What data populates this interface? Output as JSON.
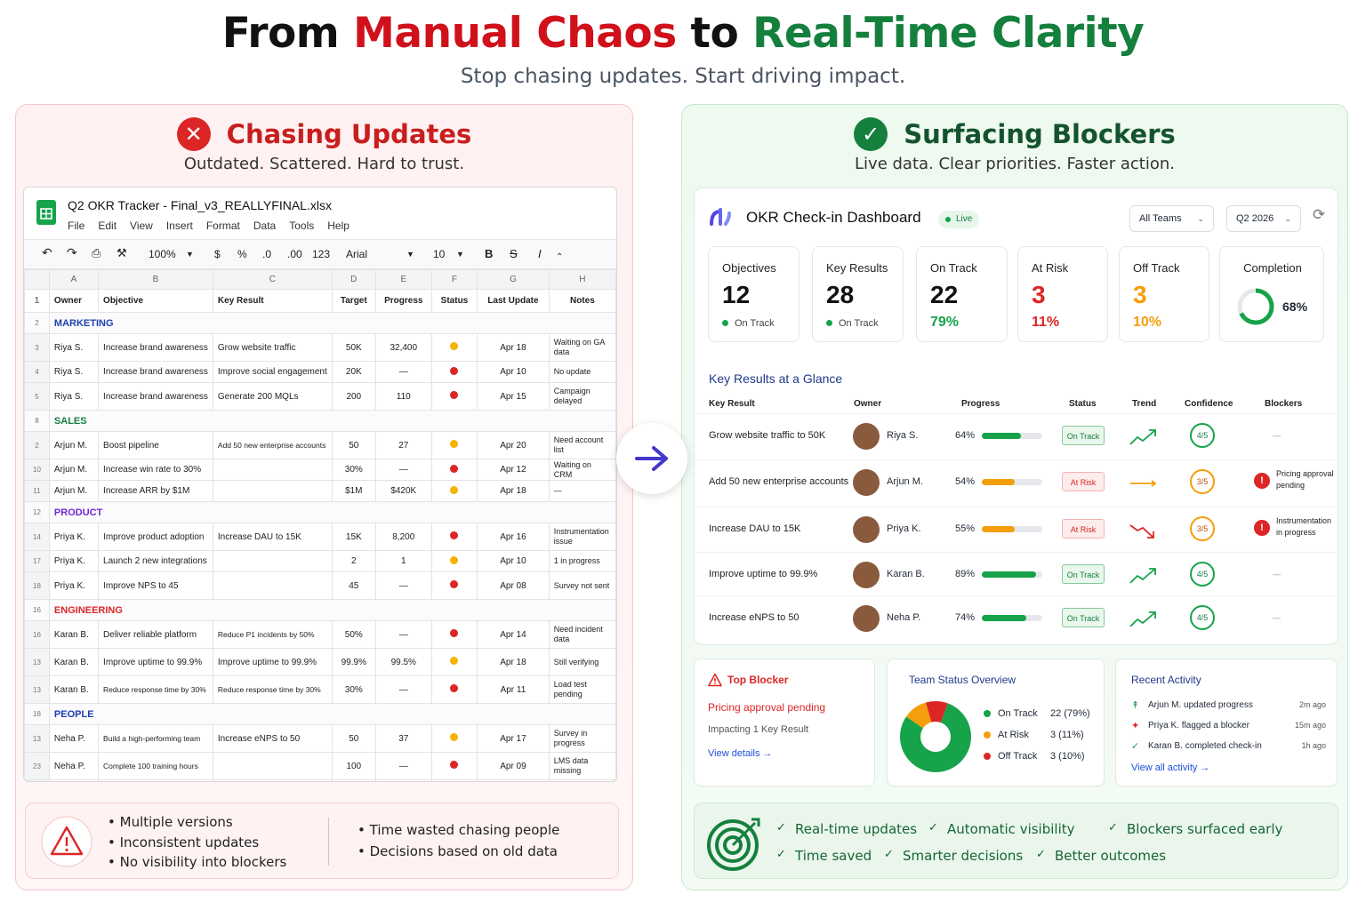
{
  "header": {
    "t1": "From ",
    "t2": "Manual Chaos",
    "t3": " to ",
    "t4": "Real-Time Clarity",
    "subtitle": "Stop chasing updates. Start driving impact."
  },
  "left": {
    "title": "Chasing Updates",
    "subtitle": "Outdated. Scattered. Hard to trust.",
    "sheet": {
      "file_name": "Q2 OKR Tracker - Final_v3_REALLYFINAL.xlsx",
      "menu": [
        "File",
        "Edit",
        "View",
        "Insert",
        "Format",
        "Data",
        "Tools",
        "Help"
      ],
      "toolbar": {
        "zoom": "100%",
        "currency": "$",
        "percent": "%",
        "decimal_down": ".0",
        "decimal_up": ".00",
        "format": "123",
        "font": "Arial",
        "size": "10",
        "bold": "B",
        "strike": "S",
        "italic": "I"
      },
      "col_letters": [
        "A",
        "B",
        "C",
        "D",
        "E",
        "F",
        "G",
        "H"
      ],
      "headers": [
        "Owner",
        "Objective",
        "Key Result",
        "Target",
        "Progress",
        "Status",
        "Last Update",
        "Notes"
      ],
      "rows": [
        {
          "rn": "1",
          "type": "hdr"
        },
        {
          "rn": "2",
          "type": "sec",
          "label": "MARKETING"
        },
        {
          "rn": "3",
          "cells": [
            "Riya S.",
            "Increase brand awareness",
            "Grow website traffic",
            "50K",
            "32,400",
            "yellow",
            "Apr 18",
            "Waiting on GA data"
          ]
        },
        {
          "rn": "4",
          "cells": [
            "Riya S.",
            "Increase brand awareness",
            "Improve social engagement",
            "20K",
            "—",
            "red",
            "Apr 10",
            "No update"
          ]
        },
        {
          "rn": "5",
          "cells": [
            "Riya S.",
            "Increase brand awareness",
            "Generate 200 MQLs",
            "200",
            "110",
            "red",
            "Apr 15",
            "Campaign delayed"
          ]
        },
        {
          "rn": "8",
          "type": "sec",
          "label": "SALES"
        },
        {
          "rn": "2",
          "cells": [
            "Arjun M.",
            "Boost pipeline",
            "Add 50 new enterprise accounts",
            "50",
            "27",
            "yellow",
            "Apr 20",
            "Need account list"
          ]
        },
        {
          "rn": "10",
          "cells": [
            "Arjun M.",
            "Increase win rate to 30%",
            "",
            "30%",
            "—",
            "red",
            "Apr 12",
            "Waiting on CRM"
          ]
        },
        {
          "rn": "11",
          "cells": [
            "Arjun M.",
            "Increase ARR by $1M",
            "",
            "$1M",
            "$420K",
            "yellow",
            "Apr 18",
            "—"
          ]
        },
        {
          "rn": "12",
          "type": "sec",
          "label": "PRODUCT"
        },
        {
          "rn": "14",
          "cells": [
            "Priya K.",
            "Improve product adoption",
            "Increase DAU to 15K",
            "15K",
            "8,200",
            "red",
            "Apr 16",
            "Instrumentation issue"
          ]
        },
        {
          "rn": "17",
          "cells": [
            "Priya K.",
            "Launch 2 new integrations",
            "",
            "2",
            "1",
            "yellow",
            "Apr 10",
            "1 in progress"
          ]
        },
        {
          "rn": "18",
          "cells": [
            "Priya K.",
            "Improve NPS to 45",
            "",
            "45",
            "—",
            "red",
            "Apr 08",
            "Survey not sent"
          ]
        },
        {
          "rn": "16",
          "type": "sec",
          "label": "ENGINEERING"
        },
        {
          "rn": "16",
          "cells": [
            "Karan B.",
            "Deliver reliable platform",
            "Reduce P1 incidents by 50%",
            "50%",
            "—",
            "red",
            "Apr 14",
            "Need incident data"
          ]
        },
        {
          "rn": "13",
          "cells": [
            "Karan B.",
            "Improve uptime to 99.9%",
            "Improve uptime to 99.9%",
            "99.9%",
            "99.5%",
            "yellow",
            "Apr 18",
            "Still verifying"
          ]
        },
        {
          "rn": "13",
          "cells": [
            "Karan B.",
            "Reduce response time by 30%",
            "Reduce response time by 30%",
            "30%",
            "—",
            "red",
            "Apr 11",
            "Load test pending"
          ]
        },
        {
          "rn": "18",
          "type": "sec",
          "label": "PEOPLE"
        },
        {
          "rn": "13",
          "cells": [
            "Neha P.",
            "Build a high-performing team",
            "Increase eNPS to 50",
            "50",
            "37",
            "yellow",
            "Apr 17",
            "Survey in progress"
          ]
        },
        {
          "rn": "23",
          "cells": [
            "Neha P.",
            "Complete 100 training hours",
            "",
            "100",
            "—",
            "red",
            "Apr 09",
            "LMS data missing"
          ]
        },
        {
          "rn": "33",
          "cells": [
            "",
            "",
            "",
            "",
            "",
            "",
            "",
            ""
          ]
        }
      ]
    },
    "footer_a": [
      "Multiple versions",
      "Inconsistent updates",
      "No visibility into blockers"
    ],
    "footer_b": [
      "Time wasted chasing people",
      "Decisions based on old data"
    ]
  },
  "right": {
    "title": "Surfacing Blockers",
    "subtitle": "Live data. Clear priorities. Faster action.",
    "dash": {
      "title": "OKR Check-in Dashboard",
      "live": "Live",
      "team_select": "All Teams",
      "period_select": "Q2 2026",
      "cards": [
        {
          "label": "Objectives",
          "value": "12",
          "sub": "On Track",
          "color": "#111"
        },
        {
          "label": "Key Results",
          "value": "28",
          "sub": "On Track",
          "color": "#111"
        },
        {
          "label": "On Track",
          "value": "22",
          "sub": "79%",
          "color": "#111",
          "subcolor": "#16a34a"
        },
        {
          "label": "At Risk",
          "value": "3",
          "sub": "11%",
          "color": "#dc2626",
          "subcolor": "#dc2626"
        },
        {
          "label": "Off Track",
          "value": "3",
          "sub": "10%",
          "color": "#f59e0b",
          "subcolor": "#f59e0b"
        }
      ],
      "completion_label": "Completion",
      "completion_value": "68%",
      "completion_frac": 0.68,
      "section": "Key Results at a Glance",
      "cols": [
        "Key Result",
        "Owner",
        "Progress",
        "Status",
        "Trend",
        "Confidence",
        "Blockers"
      ],
      "krs": [
        {
          "kr": "Grow website traffic to 50K",
          "owner": "Riya S.",
          "pct": "64%",
          "frac": 0.64,
          "status": "On Track",
          "conf": "4/5",
          "blocker": "—",
          "tone": "green",
          "trend": "up"
        },
        {
          "kr": "Add 50 new enterprise accounts",
          "owner": "Arjun M.",
          "pct": "54%",
          "frac": 0.54,
          "status": "At Risk",
          "conf": "3/5",
          "blocker": "Pricing approval pending",
          "tone": "orange",
          "trend": "flat"
        },
        {
          "kr": "Increase DAU to 15K",
          "owner": "Priya K.",
          "pct": "55%",
          "frac": 0.55,
          "status": "At Risk",
          "conf": "3/5",
          "blocker": "Instrumentation in progress",
          "tone": "orange",
          "trend": "down"
        },
        {
          "kr": "Improve uptime to 99.9%",
          "owner": "Karan B.",
          "pct": "89%",
          "frac": 0.89,
          "status": "On Track",
          "conf": "4/5",
          "blocker": "—",
          "tone": "green",
          "trend": "up"
        },
        {
          "kr": "Increase eNPS to 50",
          "owner": "Neha P.",
          "pct": "74%",
          "frac": 0.74,
          "status": "On Track",
          "conf": "4/5",
          "blocker": "—",
          "tone": "green",
          "trend": "up"
        }
      ]
    },
    "top_blocker": {
      "title": "Top Blocker",
      "headline": "Pricing approval pending",
      "impact": "Impacting 1 Key Result",
      "link": "View details →"
    },
    "team_status": {
      "title": "Team Status Overview",
      "items": [
        {
          "label": "On Track",
          "value": "22 (79%)",
          "color": "#16a34a",
          "frac": 0.79
        },
        {
          "label": "At Risk",
          "value": "3 (11%)",
          "color": "#f59e0b",
          "frac": 0.11
        },
        {
          "label": "Off Track",
          "value": "3 (10%)",
          "color": "#dc2626",
          "frac": 0.1
        }
      ]
    },
    "activity": {
      "title": "Recent Activity",
      "items": [
        {
          "text": "Arjun M. updated progress",
          "time": "2m ago",
          "icon": "↟",
          "color": "#16a34a"
        },
        {
          "text": "Priya K. flagged a blocker",
          "time": "15m ago",
          "icon": "✦",
          "color": "#dc2626"
        },
        {
          "text": "Karan B. completed check-in",
          "time": "1h ago",
          "icon": "✓",
          "color": "#16a34a"
        }
      ],
      "link": "View all activity →"
    },
    "footer": [
      [
        "Real-time updates",
        "Automatic visibility",
        "Blockers surfaced early"
      ],
      [
        "Time saved",
        "Smarter decisions",
        "Better outcomes"
      ]
    ]
  }
}
